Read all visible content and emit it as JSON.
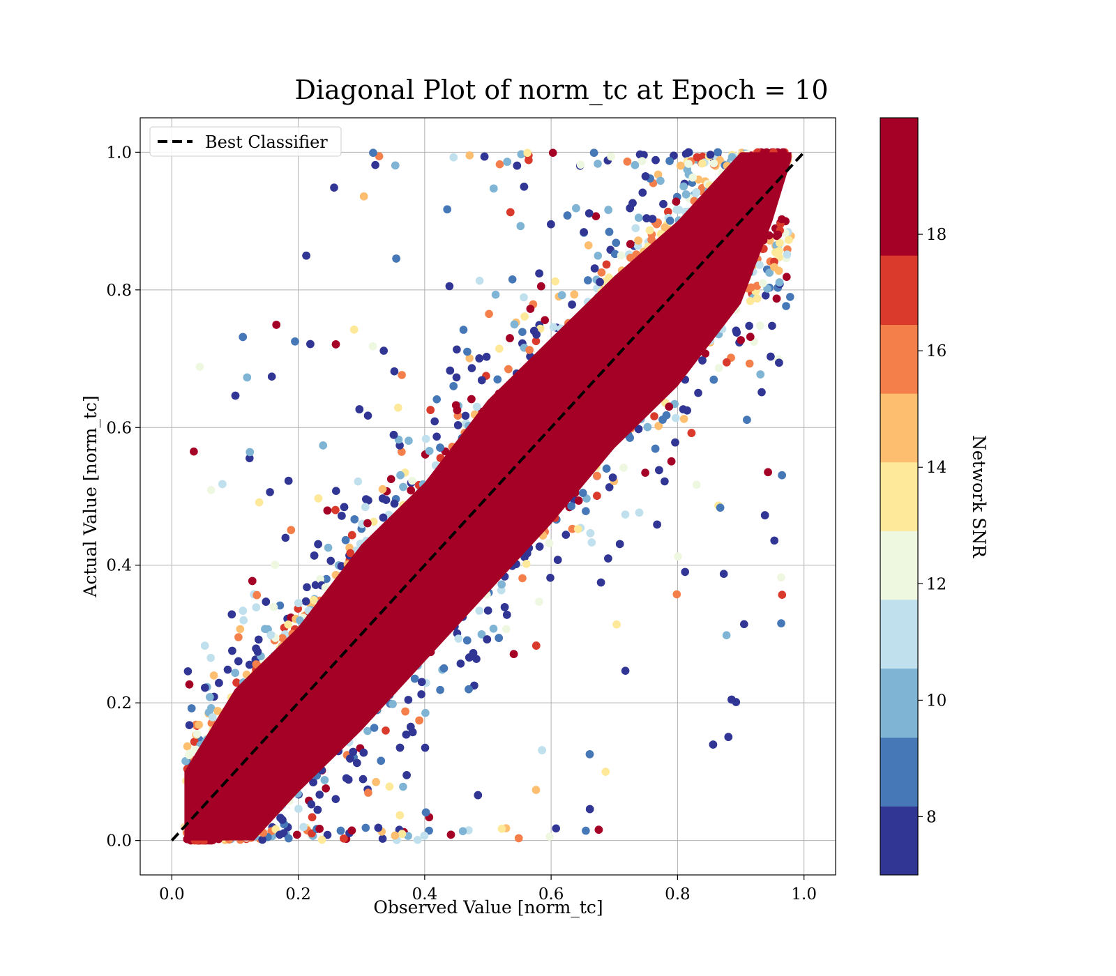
{
  "chart_data": {
    "type": "scatter",
    "title": "Diagonal Plot of norm_tc at Epoch = 10",
    "xlabel": "Observed Value [norm_tc]",
    "ylabel": "Actual Value [norm_tc]",
    "xlim": [
      -0.05,
      1.05
    ],
    "ylim": [
      -0.05,
      1.05
    ],
    "xticks": [
      "0.0",
      "0.2",
      "0.4",
      "0.6",
      "0.8",
      "1.0"
    ],
    "yticks": [
      "0.0",
      "0.2",
      "0.4",
      "0.6",
      "0.8",
      "1.0"
    ],
    "grid": true,
    "legend": {
      "position": "top-left",
      "entries": [
        {
          "label": "Best Classifier",
          "style": "dashed",
          "color": "#000000"
        }
      ]
    },
    "reference_line": {
      "label": "Best Classifier",
      "x": [
        0,
        1
      ],
      "y": [
        0,
        1
      ]
    },
    "colorbar": {
      "label": "Network SNR",
      "range": [
        7,
        20
      ],
      "ticks": [
        "8",
        "10",
        "12",
        "14",
        "16",
        "18"
      ],
      "colors": [
        "#313695",
        "#4575b4",
        "#74add1",
        "#abd9e9",
        "#e0f3f8",
        "#ffffbf",
        "#fee090",
        "#fdae61",
        "#f46d43",
        "#d73027",
        "#a50026"
      ],
      "bands": [
        {
          "from": 7.0,
          "to": 8.18,
          "color": "#313695"
        },
        {
          "from": 8.18,
          "to": 9.36,
          "color": "#4677b6"
        },
        {
          "from": 9.36,
          "to": 10.55,
          "color": "#80b4d4"
        },
        {
          "from": 10.55,
          "to": 11.73,
          "color": "#bfe0ec"
        },
        {
          "from": 11.73,
          "to": 12.91,
          "color": "#eef7e0"
        },
        {
          "from": 12.91,
          "to": 14.09,
          "color": "#fee89a"
        },
        {
          "from": 14.09,
          "to": 15.27,
          "color": "#fdbe70"
        },
        {
          "from": 15.27,
          "to": 16.45,
          "color": "#f47f4b"
        },
        {
          "from": 16.45,
          "to": 17.64,
          "color": "#da3a2c"
        },
        {
          "from": 17.64,
          "to": 20.0,
          "color": "#a50026"
        }
      ]
    },
    "point_density": "very high near diagonal; sparse outliers away from it",
    "band": {
      "core_color": "#a50026",
      "upper_edge": [
        [
          0.02,
          0.1
        ],
        [
          0.1,
          0.22
        ],
        [
          0.2,
          0.31
        ],
        [
          0.3,
          0.43
        ],
        [
          0.4,
          0.52
        ],
        [
          0.5,
          0.64
        ],
        [
          0.6,
          0.73
        ],
        [
          0.7,
          0.82
        ],
        [
          0.8,
          0.9
        ],
        [
          0.87,
          0.97
        ],
        [
          0.9,
          1.0
        ],
        [
          0.98,
          1.0
        ]
      ],
      "lower_edge": [
        [
          0.98,
          0.99
        ],
        [
          0.95,
          0.9
        ],
        [
          0.9,
          0.78
        ],
        [
          0.8,
          0.66
        ],
        [
          0.7,
          0.57
        ],
        [
          0.6,
          0.46
        ],
        [
          0.5,
          0.36
        ],
        [
          0.4,
          0.26
        ],
        [
          0.3,
          0.16
        ],
        [
          0.2,
          0.07
        ],
        [
          0.13,
          0.0
        ],
        [
          0.02,
          0.0
        ]
      ]
    }
  }
}
